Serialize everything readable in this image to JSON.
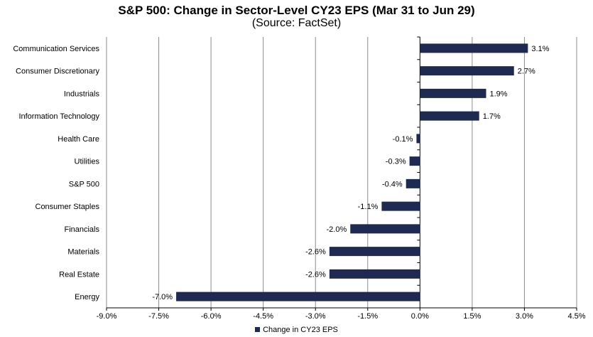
{
  "colors": {
    "bar": "#1f2a52",
    "grid": "#8c8c8c",
    "axis": "#000000"
  },
  "chart_data": {
    "type": "bar",
    "orientation": "horizontal",
    "title": "S&P 500: Change in Sector-Level CY23 EPS (Mar 31 to Jun 29)",
    "subtitle": "(Source: FactSet)",
    "categories": [
      "Communication Services",
      "Consumer Discretionary",
      "Industrials",
      "Information Technology",
      "Health Care",
      "Utilities",
      "S&P 500",
      "Consumer Staples",
      "Financials",
      "Materials",
      "Real Estate",
      "Energy"
    ],
    "series": [
      {
        "name": "Change in CY23 EPS",
        "values": [
          3.1,
          2.7,
          1.9,
          1.7,
          -0.1,
          -0.3,
          -0.4,
          -1.1,
          -2.0,
          -2.6,
          -2.6,
          -7.0
        ]
      }
    ],
    "data_labels": [
      "3.1%",
      "2.7%",
      "1.9%",
      "1.7%",
      "-0.1%",
      "-0.3%",
      "-0.4%",
      "-1.1%",
      "-2.0%",
      "-2.6%",
      "-2.6%",
      "-7.0%"
    ],
    "xlim": [
      -9.0,
      4.5
    ],
    "xticks": [
      -9.0,
      -7.5,
      -6.0,
      -4.5,
      -3.0,
      -1.5,
      0.0,
      1.5,
      3.0,
      4.5
    ],
    "xtick_labels": [
      "-9.0%",
      "-7.5%",
      "-6.0%",
      "-4.5%",
      "-3.0%",
      "-1.5%",
      "0.0%",
      "1.5%",
      "3.0%",
      "4.5%"
    ],
    "grid": "vertical",
    "legend_position": "bottom",
    "xlabel": "",
    "ylabel": ""
  }
}
